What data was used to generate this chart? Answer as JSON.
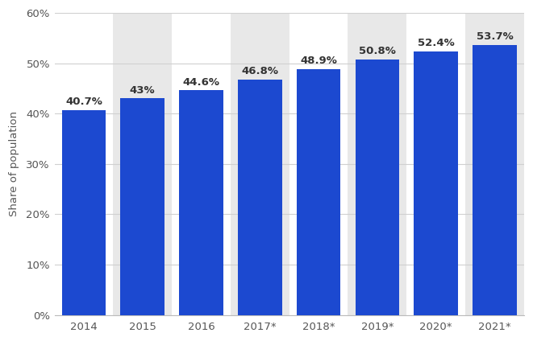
{
  "categories": [
    "2014",
    "2015",
    "2016",
    "2017*",
    "2018*",
    "2019*",
    "2020*",
    "2021*"
  ],
  "values": [
    40.7,
    43.0,
    44.6,
    46.8,
    48.9,
    50.8,
    52.4,
    53.7
  ],
  "labels": [
    "40.7%",
    "43%",
    "44.6%",
    "46.8%",
    "48.9%",
    "50.8%",
    "52.4%",
    "53.7%"
  ],
  "bar_color": "#1c49d0",
  "background_color": "#ffffff",
  "plot_bg_color": "#ffffff",
  "ylabel": "Share of population",
  "ylim": [
    0,
    60
  ],
  "yticks": [
    0,
    10,
    20,
    30,
    40,
    50,
    60
  ],
  "ytick_labels": [
    "0%",
    "10%",
    "20%",
    "30%",
    "40%",
    "50%",
    "60%"
  ],
  "stripe_columns": [
    1,
    3,
    5,
    7
  ],
  "stripe_color": "#e8e8e8",
  "label_fontsize": 9.5,
  "tick_fontsize": 9.5,
  "ylabel_fontsize": 9.5,
  "bar_width": 0.75,
  "grid_color": "#d0d0d0"
}
